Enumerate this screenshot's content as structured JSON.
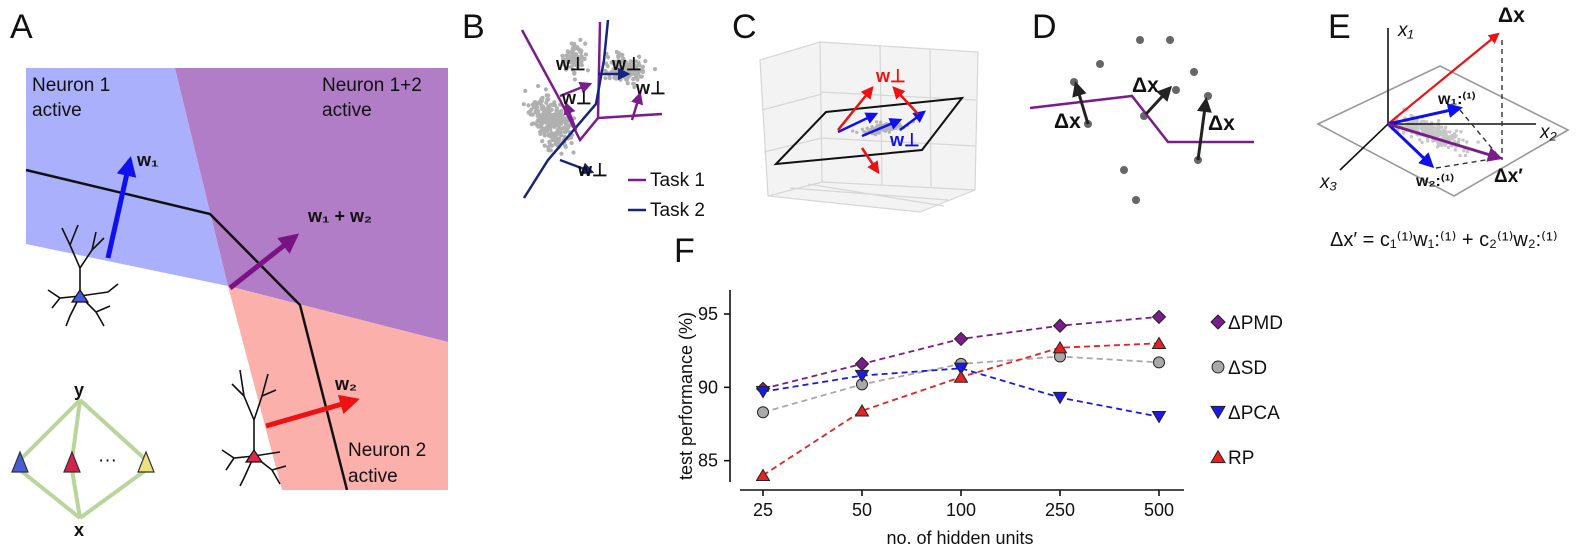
{
  "panels": {
    "A": "A",
    "B": "B",
    "C": "C",
    "D": "D",
    "E": "E",
    "F": "F"
  },
  "panelA": {
    "region1": [
      "Neuron 1",
      "active"
    ],
    "region12": [
      "Neuron 1+2",
      "active"
    ],
    "region2": [
      "Neuron 2",
      "active"
    ],
    "w1": "w₁",
    "w2": "w₂",
    "w12": "w₁ + w₂",
    "net_top": "y",
    "net_bottom": "x",
    "net_dots": "···"
  },
  "panelB": {
    "wperp": "w⊥",
    "legend": [
      "Task 1",
      "Task 2"
    ],
    "colors": {
      "task1": "#7b1c8c",
      "task2": "#1a237e"
    }
  },
  "panelC": {
    "wperp_red": "w⊥",
    "wperp_blue": "w⊥"
  },
  "panelD": {
    "dx": "Δx"
  },
  "panelE": {
    "x1": "x₁",
    "x2": "x₂",
    "x3": "x₃",
    "dx": "Δx",
    "dxp": "Δx′",
    "w1": "w₁:⁽¹⁾",
    "w2": "w₂:⁽¹⁾",
    "equation": "Δx′ = c₁⁽¹⁾w₁:⁽¹⁾ + c₂⁽¹⁾w₂:⁽¹⁾"
  },
  "colors": {
    "neuron1_region": "#aab0fb",
    "neuron12_region": "#b07dc6",
    "neuron2_region": "#fbb0ac",
    "blue": "#1010ee",
    "red": "#ee1111",
    "purple": "#7b1283",
    "gray": "#b0b0b0"
  },
  "chart_data": {
    "type": "line",
    "title": "",
    "xlabel": "no. of hidden units",
    "ylabel": "test performance (%)",
    "categories": [
      "25",
      "50",
      "100",
      "250",
      "500"
    ],
    "yticks": [
      85,
      90,
      95
    ],
    "ylim": [
      83,
      96.5
    ],
    "series": [
      {
        "name": "ΔPMD",
        "marker": "diamond",
        "color": "#7b1c8c",
        "values": [
          89.9,
          91.6,
          93.3,
          94.2,
          94.8
        ]
      },
      {
        "name": "ΔSD",
        "marker": "circle",
        "color": "#a9a9a9",
        "values": [
          88.3,
          90.2,
          91.6,
          92.1,
          91.7
        ]
      },
      {
        "name": "ΔPCA",
        "marker": "triangle-down",
        "color": "#1a1ae6",
        "values": [
          89.7,
          90.8,
          91.3,
          89.3,
          88.0
        ]
      },
      {
        "name": "RP",
        "marker": "triangle-up",
        "color": "#e62222",
        "values": [
          84.0,
          88.4,
          90.7,
          92.7,
          93.0
        ]
      }
    ]
  }
}
